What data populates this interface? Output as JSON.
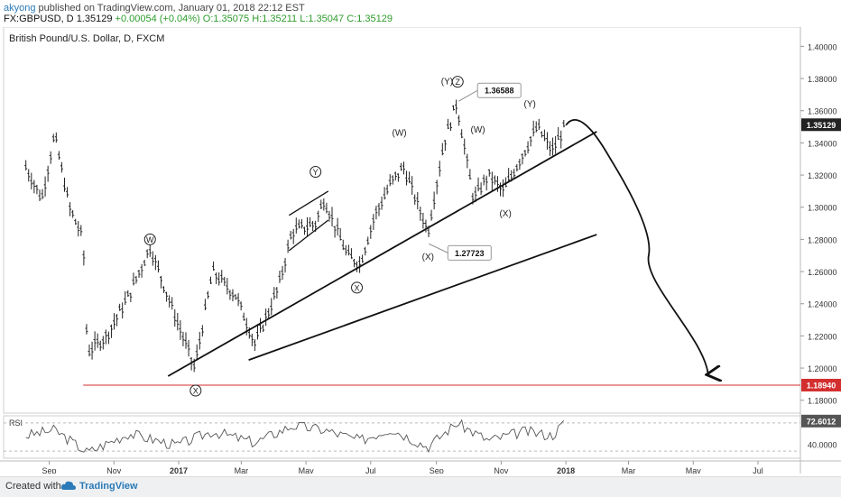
{
  "header": {
    "user": "akyong",
    "published_text": "published on TradingView.com, January 01, 2018 22:12 EST",
    "symbol": "FX:GBPUSD, D",
    "last": "1.35129",
    "change": "+0.00054 (+0.04%)",
    "ohlc_o": "O:1.35075",
    "ohlc_h": "H:1.35211",
    "ohlc_l": "L:1.35047",
    "ohlc_c": "C:1.35129"
  },
  "footer": {
    "created_with": "Created with",
    "brand": "TradingView"
  },
  "colors": {
    "candles": "#222222",
    "rsi": "#555555",
    "support": "#d32f2f",
    "accent": "#2a7ab8"
  },
  "chart_data": {
    "type": "line",
    "title": "British Pound/U.S. Dollar, D, FXCM",
    "price_axis": {
      "ticks": [
        "1.40000",
        "1.38000",
        "1.36000",
        "1.34000",
        "1.32000",
        "1.30000",
        "1.28000",
        "1.26000",
        "1.24000",
        "1.22000",
        "1.20000",
        "1.18000"
      ],
      "ylim": [
        1.172,
        1.412
      ]
    },
    "x_ticks": [
      "Sep",
      "Nov",
      "2017",
      "Mar",
      "May",
      "Jul",
      "Sep",
      "Nov",
      "2018",
      "Mar",
      "May",
      "Jul"
    ],
    "price_series": {
      "name": "GBPUSD",
      "x": [
        "2016-08-10",
        "2016-08-25",
        "2016-09-06",
        "2016-09-20",
        "2016-10-03",
        "2016-10-07",
        "2016-10-25",
        "2016-11-15",
        "2016-12-05",
        "2016-12-30",
        "2017-01-16",
        "2017-02-02",
        "2017-02-24",
        "2017-03-14",
        "2017-04-05",
        "2017-04-18",
        "2017-05-10",
        "2017-05-18",
        "2017-06-09",
        "2017-06-21",
        "2017-07-05",
        "2017-07-20",
        "2017-08-01",
        "2017-08-24",
        "2017-09-08",
        "2017-09-20",
        "2017-10-06",
        "2017-10-20",
        "2017-11-03",
        "2017-11-23",
        "2017-12-05",
        "2017-12-19",
        "2018-01-01"
      ],
      "y": [
        1.325,
        1.305,
        1.345,
        1.3,
        1.28,
        1.21,
        1.22,
        1.245,
        1.275,
        1.23,
        1.2,
        1.26,
        1.245,
        1.215,
        1.25,
        1.285,
        1.29,
        1.305,
        1.27,
        1.265,
        1.295,
        1.315,
        1.325,
        1.285,
        1.34,
        1.365,
        1.305,
        1.32,
        1.31,
        1.335,
        1.35,
        1.335,
        1.351
      ]
    },
    "annotations": [
      {
        "text": "1.36588",
        "x": "2017-09-21",
        "y": 1.36588
      },
      {
        "text": "1.27723",
        "x": "2017-08-24",
        "y": 1.27723
      },
      {
        "text": "1.35129",
        "y": 1.35129
      },
      {
        "text": "1.18940",
        "y": 1.1894
      }
    ],
    "wave_labels": [
      {
        "text": "W",
        "circled": true,
        "x": "2016-12-05",
        "y": 1.28
      },
      {
        "text": "X",
        "circled": true,
        "x": "2017-01-17",
        "y": 1.186
      },
      {
        "text": "Y",
        "circled": true,
        "x": "2017-05-10",
        "y": 1.322
      },
      {
        "text": "X",
        "circled": true,
        "x": "2017-06-18",
        "y": 1.25
      },
      {
        "text": "(W)",
        "circled": false,
        "x": "2017-07-28",
        "y": 1.346
      },
      {
        "text": "(X)",
        "circled": false,
        "x": "2017-08-24",
        "y": 1.269
      },
      {
        "text": "(Y)",
        "circled": false,
        "x": "2017-09-11",
        "y": 1.378
      },
      {
        "text": "Z",
        "circled": true,
        "x": "2017-09-21",
        "y": 1.378
      },
      {
        "text": "(W)",
        "circled": false,
        "x": "2017-10-10",
        "y": 1.348
      },
      {
        "text": "(X)",
        "circled": false,
        "x": "2017-11-05",
        "y": 1.296
      },
      {
        "text": "(Y)",
        "circled": false,
        "x": "2017-11-28",
        "y": 1.364
      }
    ],
    "trendlines": [
      {
        "x": [
          "2016-12-22",
          "2018-01-30"
        ],
        "y": [
          1.195,
          1.347
        ]
      },
      {
        "x": [
          "2017-03-08",
          "2018-01-30"
        ],
        "y": [
          1.205,
          1.283
        ]
      },
      {
        "x": [
          "2017-04-15",
          "2017-05-22"
        ],
        "y": [
          1.295,
          1.31
        ]
      },
      {
        "x": [
          "2017-04-15",
          "2017-05-22"
        ],
        "y": [
          1.273,
          1.292
        ]
      }
    ],
    "support_line": {
      "y": 1.1894,
      "from": "2016-10-03"
    },
    "projection": {
      "x": [
        "2018-01-01",
        "2018-01-15",
        "2018-02-12",
        "2018-03-20",
        "2018-05-15"
      ],
      "y": [
        1.351,
        1.356,
        1.33,
        1.27,
        1.196
      ]
    },
    "rsi": {
      "label": "RSI",
      "value_label": "72.6012",
      "axis_label": "40.0000",
      "ylim": [
        20,
        80
      ],
      "x": [
        "2016-08-10",
        "2016-09-06",
        "2016-10-07",
        "2016-11-15",
        "2016-12-30",
        "2017-02-02",
        "2017-03-14",
        "2017-04-18",
        "2017-05-18",
        "2017-06-21",
        "2017-07-20",
        "2017-08-24",
        "2017-09-20",
        "2017-10-20",
        "2017-11-23",
        "2017-12-19",
        "2018-01-01"
      ],
      "y": [
        52,
        60,
        28,
        55,
        38,
        58,
        42,
        66,
        60,
        45,
        62,
        36,
        70,
        45,
        58,
        52,
        72.6
      ]
    }
  }
}
